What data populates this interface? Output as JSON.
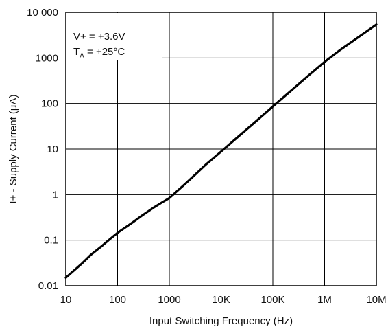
{
  "chart_data": {
    "type": "line",
    "title": "",
    "xlabel": "Input Switching Frequency (Hz)",
    "ylabel": "I+ - Supply Current (µA)",
    "xscale": "log",
    "yscale": "log",
    "xlim": [
      10,
      10000000
    ],
    "ylim": [
      0.01,
      10000
    ],
    "grid": true,
    "x_ticks": [
      {
        "value": 10,
        "label": "10"
      },
      {
        "value": 100,
        "label": "100"
      },
      {
        "value": 1000,
        "label": "1000"
      },
      {
        "value": 10000,
        "label": "10K"
      },
      {
        "value": 100000,
        "label": "100K"
      },
      {
        "value": 1000000,
        "label": "1M"
      },
      {
        "value": 10000000,
        "label": "10M"
      }
    ],
    "y_ticks": [
      {
        "value": 0.01,
        "label": "0.01"
      },
      {
        "value": 0.1,
        "label": "0.1"
      },
      {
        "value": 1,
        "label": "1"
      },
      {
        "value": 10,
        "label": "10"
      },
      {
        "value": 100,
        "label": "100"
      },
      {
        "value": 1000,
        "label": "1000"
      },
      {
        "value": 10000,
        "label": "10 000"
      }
    ],
    "annotation": {
      "line1": "V+ = +3.6V",
      "line2_main": "T",
      "line2_sub": "A",
      "line2_rest": " = +25°C"
    },
    "series": [
      {
        "x": [
          10,
          20,
          30,
          50,
          70,
          100,
          200,
          300,
          500,
          700,
          1000,
          2000,
          3000,
          5000,
          10000,
          20000,
          50000,
          100000,
          200000,
          500000,
          1000000,
          2000000,
          5000000,
          10000000
        ],
        "y": [
          0.015,
          0.03,
          0.047,
          0.075,
          0.104,
          0.145,
          0.25,
          0.35,
          0.52,
          0.66,
          0.84,
          1.7,
          2.6,
          4.5,
          8.8,
          17.5,
          43,
          86,
          170,
          420,
          820,
          1500,
          3100,
          5400
        ]
      }
    ]
  }
}
